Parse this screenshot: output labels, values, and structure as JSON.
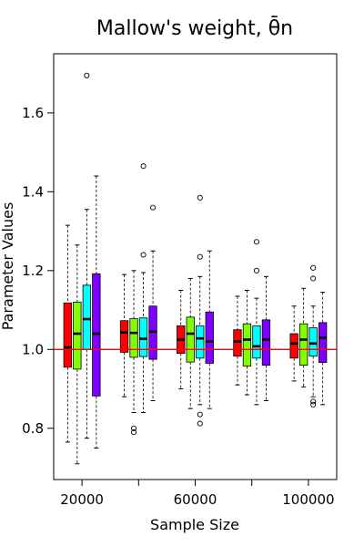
{
  "chart_data": {
    "type": "boxplot",
    "title": "Mallow's weight, θ̄n",
    "xlabel": "Sample Size",
    "ylabel": "Parameter Values",
    "ylim": [
      0.67,
      1.75
    ],
    "yticks": [
      "0.8",
      "1.0",
      "1.2",
      "1.4",
      "1.6"
    ],
    "group_labels": [
      "20000",
      "",
      "60000",
      "",
      "100000"
    ],
    "reference_line": {
      "y": 1.0,
      "color": "#ff0000"
    },
    "series_colors": [
      "#ff0000",
      "#80ff00",
      "#00ffff",
      "#8000ff"
    ],
    "groups": [
      {
        "boxes": [
          {
            "min": 0.765,
            "q1": 0.955,
            "median": 1.005,
            "q3": 1.118,
            "max": 1.315,
            "outliers": []
          },
          {
            "min": 0.71,
            "q1": 0.95,
            "median": 1.04,
            "q3": 1.12,
            "max": 1.265,
            "outliers": []
          },
          {
            "min": 0.775,
            "q1": 1.0,
            "median": 1.077,
            "q3": 1.163,
            "max": 1.355,
            "outliers": [
              1.695
            ]
          },
          {
            "min": 0.75,
            "q1": 0.882,
            "median": 1.04,
            "q3": 1.192,
            "max": 1.44,
            "outliers": []
          }
        ]
      },
      {
        "boxes": [
          {
            "min": 0.88,
            "q1": 0.993,
            "median": 1.043,
            "q3": 1.073,
            "max": 1.19,
            "outliers": []
          },
          {
            "min": 0.84,
            "q1": 0.98,
            "median": 1.042,
            "q3": 1.078,
            "max": 1.2,
            "outliers": [
              0.8,
              0.79
            ]
          },
          {
            "min": 0.84,
            "q1": 0.982,
            "median": 1.027,
            "q3": 1.08,
            "max": 1.195,
            "outliers": [
              1.465,
              1.24
            ]
          },
          {
            "min": 0.87,
            "q1": 0.975,
            "median": 1.045,
            "q3": 1.11,
            "max": 1.25,
            "outliers": [
              1.36
            ]
          }
        ]
      },
      {
        "boxes": [
          {
            "min": 0.9,
            "q1": 0.99,
            "median": 1.025,
            "q3": 1.06,
            "max": 1.15,
            "outliers": []
          },
          {
            "min": 0.85,
            "q1": 0.968,
            "median": 1.04,
            "q3": 1.082,
            "max": 1.18,
            "outliers": []
          },
          {
            "min": 0.86,
            "q1": 0.978,
            "median": 1.028,
            "q3": 1.06,
            "max": 1.185,
            "outliers": [
              1.385,
              1.235,
              0.835,
              0.812
            ]
          },
          {
            "min": 0.85,
            "q1": 0.965,
            "median": 1.02,
            "q3": 1.095,
            "max": 1.25,
            "outliers": []
          }
        ]
      },
      {
        "boxes": [
          {
            "min": 0.91,
            "q1": 0.983,
            "median": 1.02,
            "q3": 1.05,
            "max": 1.135,
            "outliers": []
          },
          {
            "min": 0.885,
            "q1": 0.958,
            "median": 1.025,
            "q3": 1.065,
            "max": 1.15,
            "outliers": []
          },
          {
            "min": 0.86,
            "q1": 0.978,
            "median": 1.008,
            "q3": 1.06,
            "max": 1.13,
            "outliers": [
              1.273,
              1.2
            ]
          },
          {
            "min": 0.87,
            "q1": 0.96,
            "median": 1.025,
            "q3": 1.075,
            "max": 1.185,
            "outliers": []
          }
        ]
      },
      {
        "boxes": [
          {
            "min": 0.92,
            "q1": 0.978,
            "median": 1.015,
            "q3": 1.04,
            "max": 1.11,
            "outliers": []
          },
          {
            "min": 0.905,
            "q1": 0.96,
            "median": 1.025,
            "q3": 1.065,
            "max": 1.155,
            "outliers": []
          },
          {
            "min": 0.88,
            "q1": 0.983,
            "median": 1.015,
            "q3": 1.055,
            "max": 1.11,
            "outliers": [
              1.207,
              1.18,
              0.868,
              0.86
            ]
          },
          {
            "min": 0.86,
            "q1": 0.967,
            "median": 1.03,
            "q3": 1.068,
            "max": 1.145,
            "outliers": []
          }
        ]
      }
    ]
  }
}
